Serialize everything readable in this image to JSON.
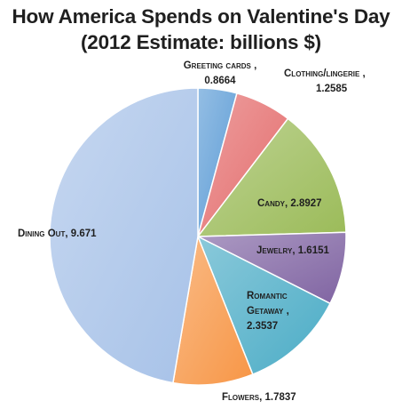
{
  "chart_data": {
    "type": "pie",
    "title": "How America Spends on Valentine's Day",
    "subtitle": "(2012 Estimate: billions $)",
    "slices": [
      {
        "label": "Greeting cards",
        "value": 0.8664,
        "display": "0.8664",
        "color": "#5b9bd5"
      },
      {
        "label": "Clothing/lingerie",
        "value": 1.2585,
        "display": "1.2585",
        "color": "#e46c6c"
      },
      {
        "label": "Candy",
        "value": 2.8927,
        "display": "2.8927",
        "color": "#9bbb59"
      },
      {
        "label": "Jewelry",
        "value": 1.6151,
        "display": "1.6151",
        "color": "#8064a2"
      },
      {
        "label": "Romantic Getaway",
        "value": 2.3537,
        "display": "2.3537",
        "color": "#4bacc6"
      },
      {
        "label": "Flowers",
        "value": 1.7837,
        "display": "1.7837",
        "color": "#f79646"
      },
      {
        "label": "Dining Out",
        "value": 9.671,
        "display": "9.671",
        "color": "#a7c2e8"
      }
    ],
    "legend": "none"
  }
}
